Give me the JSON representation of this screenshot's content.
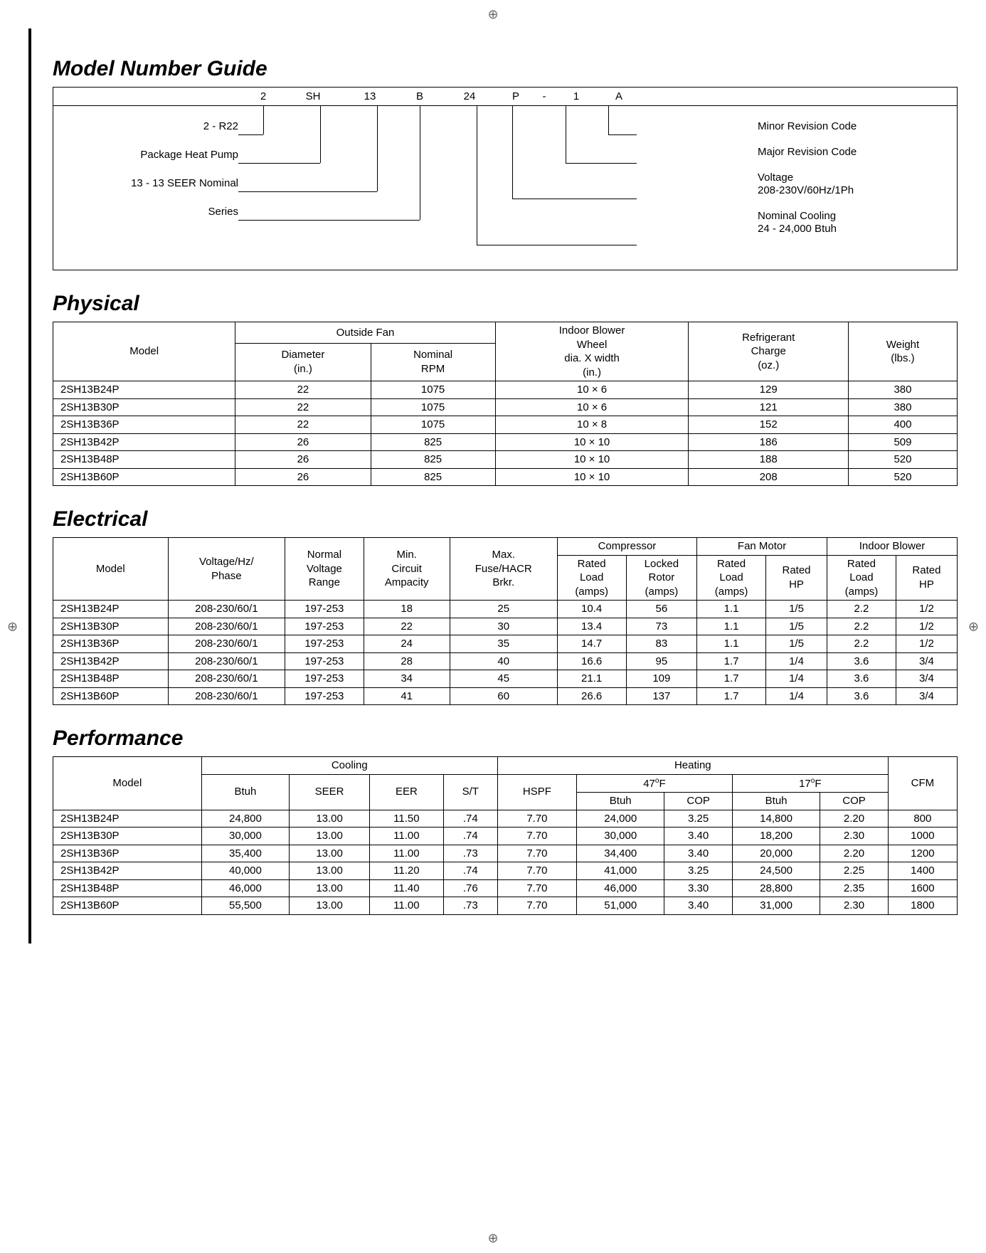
{
  "headings": {
    "mng": "Model Number Guide",
    "physical": "Physical",
    "electrical": "Electrical",
    "performance": "Performance"
  },
  "mng": {
    "segments": [
      "2",
      "SH",
      "13",
      "B",
      "24",
      "P",
      "-",
      "1",
      "A"
    ],
    "seg_widths": [
      60,
      80,
      80,
      60,
      80,
      50,
      30,
      60,
      60
    ],
    "left": [
      "2 - R22",
      "Package Heat Pump",
      "13 - 13 SEER Nominal",
      "Series"
    ],
    "right": [
      "Minor Revision Code",
      "Major Revision Code",
      "Voltage\n208-230V/60Hz/1Ph",
      "Nominal Cooling\n24 - 24,000 Btuh"
    ]
  },
  "physical": {
    "headers": {
      "model": "Model",
      "outside_fan": "Outside Fan",
      "diameter": "Diameter\n(in.)",
      "rpm": "Nominal\nRPM",
      "blower": "Indoor Blower\nWheel\ndia. X width\n(in.)",
      "charge": "Refrigerant\nCharge\n(oz.)",
      "weight": "Weight\n(lbs.)"
    },
    "rows": [
      [
        "2SH13B24P",
        "22",
        "1075",
        "10 × 6",
        "129",
        "380"
      ],
      [
        "2SH13B30P",
        "22",
        "1075",
        "10 × 6",
        "121",
        "380"
      ],
      [
        "2SH13B36P",
        "22",
        "1075",
        "10 × 8",
        "152",
        "400"
      ],
      [
        "2SH13B42P",
        "26",
        "825",
        "10 × 10",
        "186",
        "509"
      ],
      [
        "2SH13B48P",
        "26",
        "825",
        "10 × 10",
        "188",
        "520"
      ],
      [
        "2SH13B60P",
        "26",
        "825",
        "10 × 10",
        "208",
        "520"
      ]
    ]
  },
  "electrical": {
    "headers": {
      "model": "Model",
      "vhz": "Voltage/Hz/\nPhase",
      "range": "Normal\nVoltage\nRange",
      "min": "Min.\nCircuit\nAmpacity",
      "max": "Max.\nFuse/HACR\nBrkr.",
      "compressor": "Compressor",
      "fan": "Fan Motor",
      "blower": "Indoor Blower",
      "rla": "Rated\nLoad\n(amps)",
      "lra": "Locked\nRotor\n(amps)",
      "fla": "Rated\nLoad\n(amps)",
      "fhp": "Rated\nHP",
      "bla": "Rated\nLoad\n(amps)",
      "bhp": "Rated\nHP"
    },
    "rows": [
      [
        "2SH13B24P",
        "208-230/60/1",
        "197-253",
        "18",
        "25",
        "10.4",
        "56",
        "1.1",
        "1/5",
        "2.2",
        "1/2"
      ],
      [
        "2SH13B30P",
        "208-230/60/1",
        "197-253",
        "22",
        "30",
        "13.4",
        "73",
        "1.1",
        "1/5",
        "2.2",
        "1/2"
      ],
      [
        "2SH13B36P",
        "208-230/60/1",
        "197-253",
        "24",
        "35",
        "14.7",
        "83",
        "1.1",
        "1/5",
        "2.2",
        "1/2"
      ],
      [
        "2SH13B42P",
        "208-230/60/1",
        "197-253",
        "28",
        "40",
        "16.6",
        "95",
        "1.7",
        "1/4",
        "3.6",
        "3/4"
      ],
      [
        "2SH13B48P",
        "208-230/60/1",
        "197-253",
        "34",
        "45",
        "21.1",
        "109",
        "1.7",
        "1/4",
        "3.6",
        "3/4"
      ],
      [
        "2SH13B60P",
        "208-230/60/1",
        "197-253",
        "41",
        "60",
        "26.6",
        "137",
        "1.7",
        "1/4",
        "3.6",
        "3/4"
      ]
    ]
  },
  "performance": {
    "headers": {
      "model": "Model",
      "cooling": "Cooling",
      "heating": "Heating",
      "btuh": "Btuh",
      "seer": "SEER",
      "eer": "EER",
      "st": "S/T",
      "hspf": "HSPF",
      "t47": "47",
      "t17": "17",
      "degF": "F",
      "cop": "COP",
      "cfm": "CFM"
    },
    "rows": [
      [
        "2SH13B24P",
        "24,800",
        "13.00",
        "11.50",
        ".74",
        "7.70",
        "24,000",
        "3.25",
        "14,800",
        "2.20",
        "800"
      ],
      [
        "2SH13B30P",
        "30,000",
        "13.00",
        "11.00",
        ".74",
        "7.70",
        "30,000",
        "3.40",
        "18,200",
        "2.30",
        "1000"
      ],
      [
        "2SH13B36P",
        "35,400",
        "13.00",
        "11.00",
        ".73",
        "7.70",
        "34,400",
        "3.40",
        "20,000",
        "2.20",
        "1200"
      ],
      [
        "2SH13B42P",
        "40,000",
        "13.00",
        "11.20",
        ".74",
        "7.70",
        "41,000",
        "3.25",
        "24,500",
        "2.25",
        "1400"
      ],
      [
        "2SH13B48P",
        "46,000",
        "13.00",
        "11.40",
        ".76",
        "7.70",
        "46,000",
        "3.30",
        "28,800",
        "2.35",
        "1600"
      ],
      [
        "2SH13B60P",
        "55,500",
        "13.00",
        "11.00",
        ".73",
        "7.70",
        "51,000",
        "3.40",
        "31,000",
        "2.30",
        "1800"
      ]
    ]
  }
}
